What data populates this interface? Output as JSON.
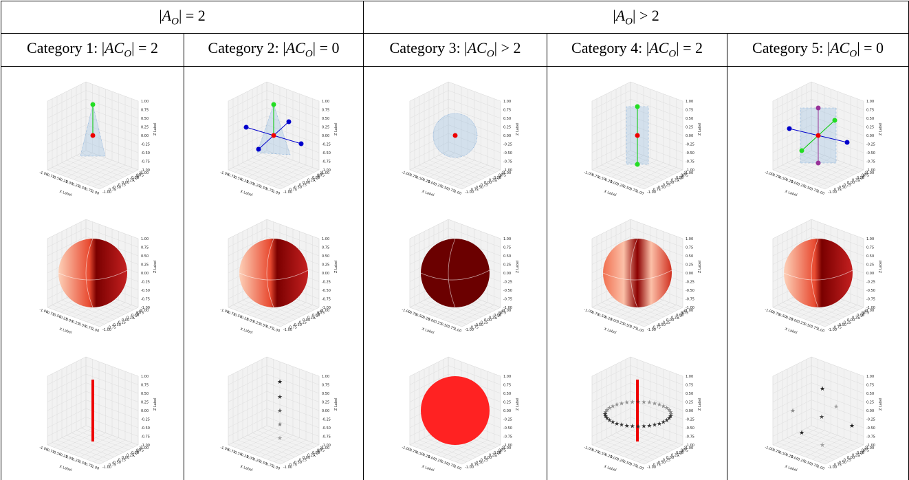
{
  "table": {
    "groups": [
      {
        "pre": "|",
        "var": "A",
        "sub": "O",
        "post": "| = 2"
      },
      {
        "pre": "|",
        "var": "A",
        "sub": "O",
        "post": "| > 2"
      }
    ],
    "columns": [
      {
        "prefix": "Category 1: |",
        "var": "AC",
        "sub": "O",
        "post": "| = 2"
      },
      {
        "prefix": "Category 2: |",
        "var": "AC",
        "sub": "O",
        "post": "| = 0"
      },
      {
        "prefix": "Category 3: |",
        "var": "AC",
        "sub": "O",
        "post": "| > 2"
      },
      {
        "prefix": "Category 4: |",
        "var": "AC",
        "sub": "O",
        "post": "| = 2"
      },
      {
        "prefix": "Category 5: |",
        "var": "AC",
        "sub": "O",
        "post": "| = 0"
      }
    ]
  },
  "plot_axes": {
    "ticks": [
      "-1.00",
      "-0.75",
      "-0.50",
      "-0.25",
      "0.00",
      "0.25",
      "0.50",
      "0.75",
      "1.00"
    ],
    "x_label": "X Label",
    "y_label": "Y Label",
    "z_label": "Z Label"
  }
}
